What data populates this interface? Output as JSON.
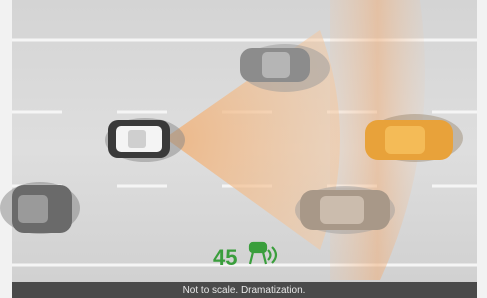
{
  "speed": 45,
  "caption": "Not to scale. Dramatization."
}
